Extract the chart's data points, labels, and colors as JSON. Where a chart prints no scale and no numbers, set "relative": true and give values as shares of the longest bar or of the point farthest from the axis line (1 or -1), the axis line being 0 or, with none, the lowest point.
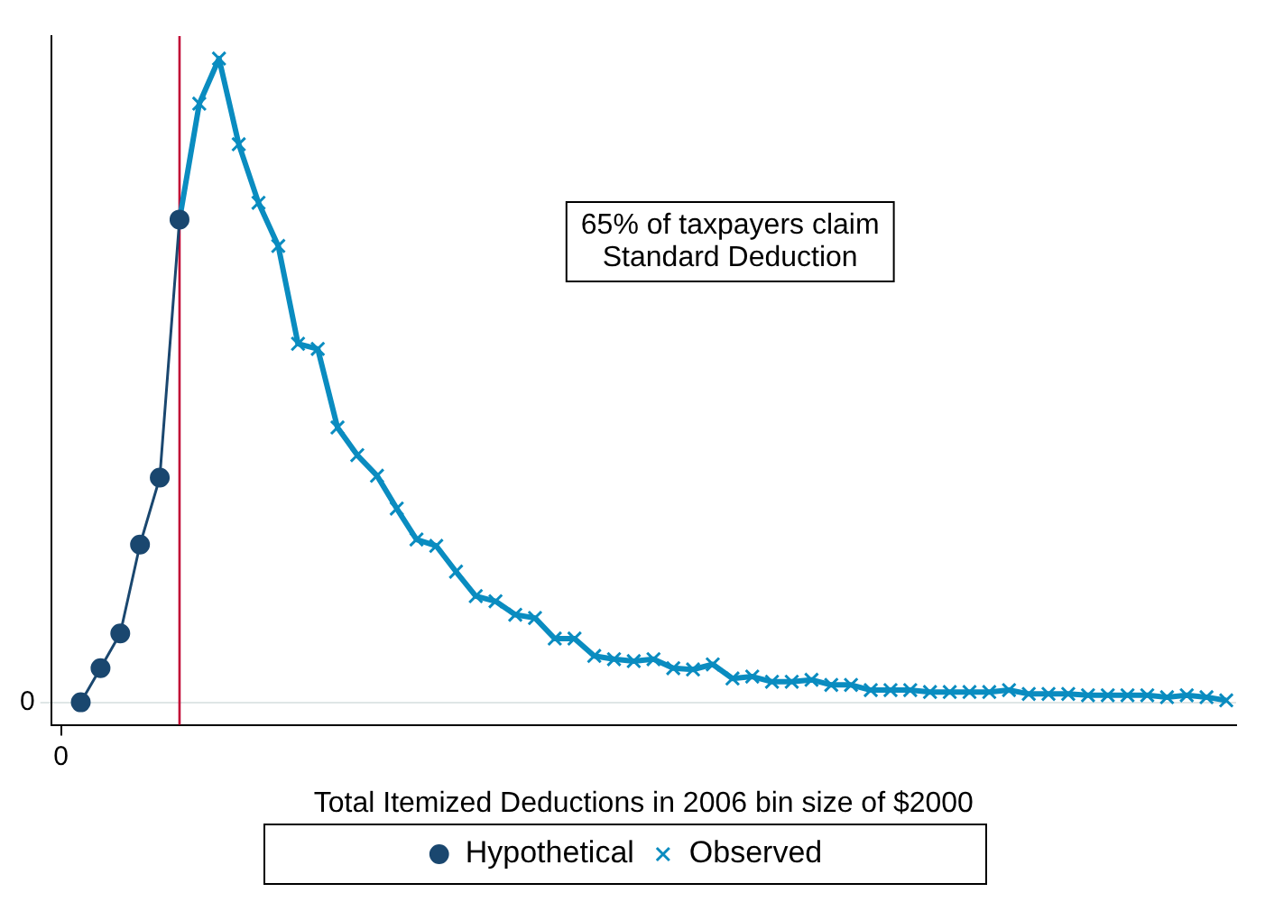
{
  "chart_data": {
    "type": "line",
    "relative": true,
    "xlabel": "Total Itemized Deductions in 2006 bin size of $2000",
    "categories": [
      null,
      null,
      null,
      null,
      null,
      null,
      null,
      null,
      null,
      null,
      null,
      null,
      null,
      null,
      null,
      null,
      null,
      null,
      null,
      null,
      null,
      null,
      null,
      null,
      null,
      null,
      null,
      null,
      null,
      null,
      null,
      null,
      null,
      null,
      null,
      null,
      null,
      null,
      null,
      null,
      null,
      null,
      null,
      null,
      null,
      null,
      null,
      null,
      null,
      null,
      null,
      null,
      null,
      null,
      null,
      null,
      null,
      null,
      null,
      null
    ],
    "legend": "bottom",
    "annotations": [
      "0",
      "0",
      "65% of taxpayers claim\nStandard Deduction"
    ],
    "series": [
      {
        "name": "Hypothetical",
        "color": "#1a476f",
        "marker": "circle",
        "values": [
          null,
          0.0,
          0.053,
          0.107,
          0.245,
          0.349,
          0.75,
          null,
          null,
          null,
          null,
          null,
          null,
          null,
          null,
          null,
          null,
          null,
          null,
          null,
          null,
          null,
          null,
          null,
          null,
          null,
          null,
          null,
          null,
          null,
          null,
          null,
          null,
          null,
          null,
          null,
          null,
          null,
          null,
          null,
          null,
          null,
          null,
          null,
          null,
          null,
          null,
          null,
          null,
          null,
          null,
          null,
          null,
          null,
          null,
          null,
          null,
          null,
          null,
          null
        ]
      },
      {
        "name": "Observed",
        "color": "#0a8cc0",
        "marker": "cross",
        "values": [
          null,
          null,
          null,
          null,
          null,
          null,
          0.75,
          0.93,
          1.0,
          0.867,
          0.776,
          0.709,
          0.557,
          0.549,
          0.427,
          0.384,
          0.352,
          0.301,
          0.253,
          0.243,
          0.203,
          0.165,
          0.157,
          0.136,
          0.131,
          0.099,
          0.099,
          0.072,
          0.067,
          0.064,
          0.067,
          0.053,
          0.051,
          0.059,
          0.037,
          0.04,
          0.032,
          0.032,
          0.035,
          0.027,
          0.027,
          0.019,
          0.019,
          0.019,
          0.016,
          0.016,
          0.016,
          0.016,
          0.019,
          0.013,
          0.013,
          0.013,
          0.011,
          0.011,
          0.011,
          0.011,
          0.008,
          0.011,
          0.008,
          0.003
        ]
      }
    ]
  }
}
